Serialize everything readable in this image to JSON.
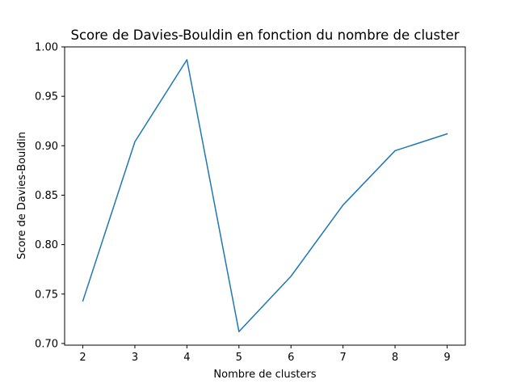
{
  "chart_data": {
    "type": "line",
    "title": "Score de Davies-Bouldin en fonction du nombre de cluster",
    "xlabel": "Nombre de clusters",
    "ylabel": "Score de Davies-Bouldin",
    "x": [
      2,
      3,
      4,
      5,
      6,
      7,
      8,
      9
    ],
    "series": [
      {
        "values": [
          0.743,
          0.904,
          0.987,
          0.712,
          0.768,
          0.84,
          0.895,
          0.912
        ]
      }
    ],
    "xticks": [
      "2",
      "3",
      "4",
      "5",
      "6",
      "7",
      "8",
      "9"
    ],
    "yticks": [
      "0.70",
      "0.75",
      "0.80",
      "0.85",
      "0.90",
      "0.95",
      "1.00"
    ],
    "xlim": [
      1.65,
      9.35
    ],
    "ylim": [
      0.6983,
      1.0
    ],
    "grid": false,
    "line_color": "#1f77b4"
  }
}
